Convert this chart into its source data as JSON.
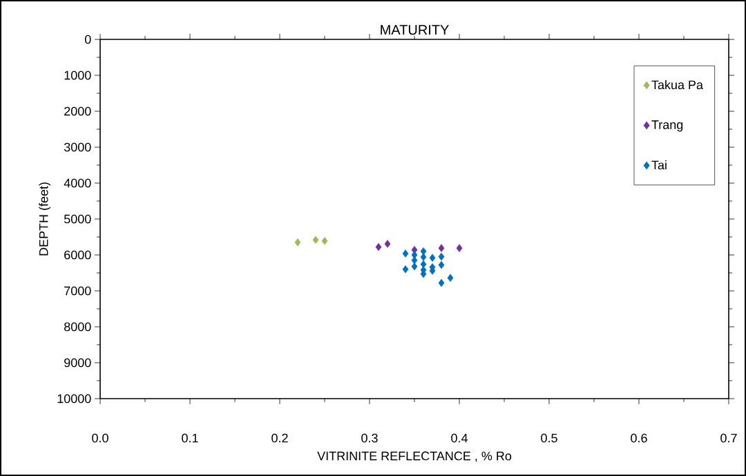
{
  "chart_data": {
    "type": "scatter",
    "title": "MATURITY",
    "xlabel": "VITRINITE  REFLECTANCE , % Ro",
    "ylabel": "DEPTH (feet)",
    "xlim": [
      0,
      0.7
    ],
    "ylim": [
      10000,
      0
    ],
    "xticks": [
      {
        "value": 0,
        "label": "0.0"
      },
      {
        "value": 0.1,
        "label": "0.1"
      },
      {
        "value": 0.2,
        "label": "0.2"
      },
      {
        "value": 0.3,
        "label": "0.3"
      },
      {
        "value": 0.4,
        "label": "0.4"
      },
      {
        "value": 0.5,
        "label": "0.5"
      },
      {
        "value": 0.6,
        "label": "0.6"
      },
      {
        "value": 0.7,
        "label": "0.7"
      }
    ],
    "yticks": [
      0,
      1000,
      2000,
      3000,
      4000,
      5000,
      6000,
      7000,
      8000,
      9000,
      10000
    ],
    "marker": "diamond",
    "legend": "top right",
    "grid": false,
    "series": [
      {
        "name": "Takua Pa",
        "color": "#9bbb59",
        "x": [
          0.22,
          0.24,
          0.25
        ],
        "values": [
          5650,
          5580,
          5610
        ]
      },
      {
        "name": "Trang",
        "color": "#7030a0",
        "x": [
          0.31,
          0.32,
          0.35,
          0.38,
          0.4
        ],
        "values": [
          5780,
          5690,
          5860,
          5810,
          5810
        ]
      },
      {
        "name": "Tai",
        "color": "#0070c0",
        "x": [
          0.34,
          0.34,
          0.35,
          0.35,
          0.35,
          0.36,
          0.36,
          0.36,
          0.36,
          0.36,
          0.37,
          0.37,
          0.37,
          0.38,
          0.38,
          0.38,
          0.39
        ],
        "values": [
          5960,
          6400,
          6000,
          6150,
          6320,
          5900,
          6060,
          6260,
          6420,
          6530,
          6080,
          6340,
          6440,
          6050,
          6280,
          6780,
          6640
        ]
      }
    ]
  }
}
